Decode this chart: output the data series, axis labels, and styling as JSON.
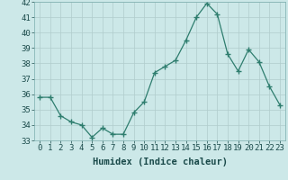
{
  "x": [
    0,
    1,
    2,
    3,
    4,
    5,
    6,
    7,
    8,
    9,
    10,
    11,
    12,
    13,
    14,
    15,
    16,
    17,
    18,
    19,
    20,
    21,
    22,
    23
  ],
  "y": [
    35.8,
    35.8,
    34.6,
    34.2,
    34.0,
    33.2,
    33.8,
    33.4,
    33.4,
    34.8,
    35.5,
    37.4,
    37.8,
    38.2,
    39.5,
    41.0,
    41.9,
    41.2,
    38.6,
    37.5,
    38.9,
    38.1,
    36.5,
    35.3
  ],
  "line_color": "#2e7d6e",
  "marker_color": "#2e7d6e",
  "bg_color": "#cce8e8",
  "grid_color": "#b0cccc",
  "xlabel": "Humidex (Indice chaleur)",
  "ylim": [
    33,
    42
  ],
  "xlim": [
    -0.5,
    23.5
  ],
  "yticks": [
    33,
    34,
    35,
    36,
    37,
    38,
    39,
    40,
    41,
    42
  ],
  "xticks": [
    0,
    1,
    2,
    3,
    4,
    5,
    6,
    7,
    8,
    9,
    10,
    11,
    12,
    13,
    14,
    15,
    16,
    17,
    18,
    19,
    20,
    21,
    22,
    23
  ],
  "xlabel_fontsize": 7.5,
  "tick_fontsize": 6.5
}
